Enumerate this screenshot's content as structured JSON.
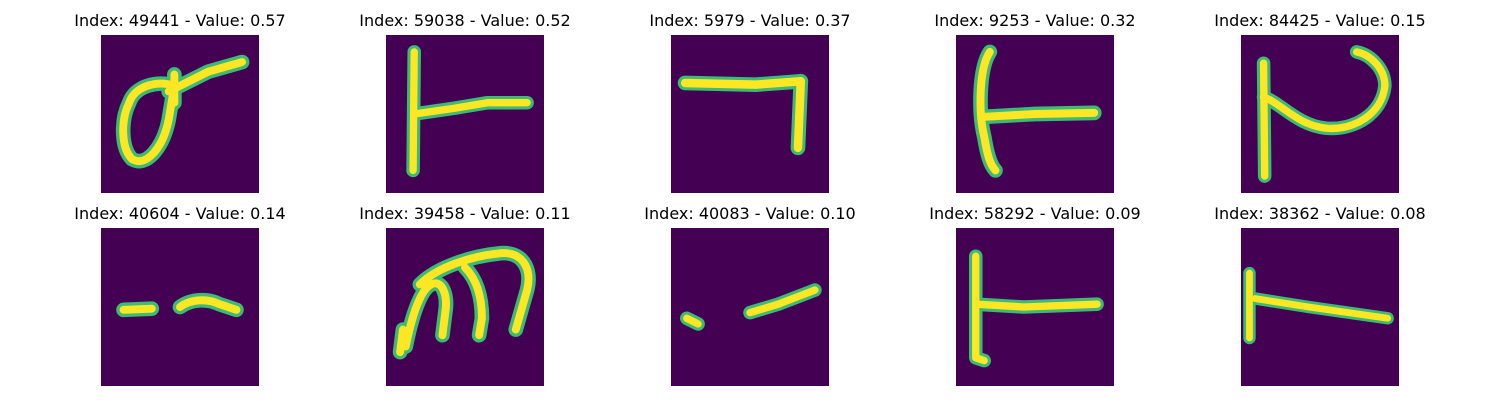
{
  "figure": {
    "colormap": {
      "background": "#440154",
      "stroke_core": "#fde725",
      "stroke_edge": "#3bbb75"
    },
    "panels": [
      {
        "title": "Index: 49441 - Value: 0.57",
        "depicts": "handwritten-glyph"
      },
      {
        "title": "Index: 59038 - Value: 0.52",
        "depicts": "handwritten-glyph"
      },
      {
        "title": "Index: 5979 - Value: 0.37",
        "depicts": "handwritten-glyph"
      },
      {
        "title": "Index: 9253 - Value: 0.32",
        "depicts": "handwritten-glyph"
      },
      {
        "title": "Index: 84425 - Value: 0.15",
        "depicts": "handwritten-glyph"
      },
      {
        "title": "Index: 40604 - Value: 0.14",
        "depicts": "handwritten-glyph"
      },
      {
        "title": "Index: 39458 - Value: 0.11",
        "depicts": "handwritten-glyph"
      },
      {
        "title": "Index: 40083 - Value: 0.10",
        "depicts": "handwritten-glyph"
      },
      {
        "title": "Index: 58292 - Value: 0.09",
        "depicts": "handwritten-glyph"
      },
      {
        "title": "Index: 38362 - Value: 0.08",
        "depicts": "handwritten-glyph"
      }
    ]
  }
}
